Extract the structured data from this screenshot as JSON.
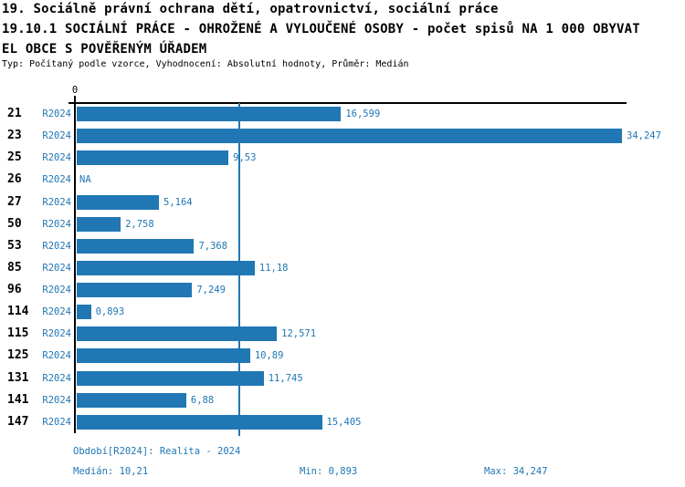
{
  "header": {
    "line1": "19. Sociálně právní ochrana dětí, opatrovnictví, sociální práce",
    "line2": "19.10.1 SOCIÁLNÍ PRÁCE - OHROŽENÉ A VYLOUČENÉ OSOBY - počet spisů NA 1 000 OBYVAT",
    "line3": "EL OBCE S POVĚŘENÝM ÚŘADEM",
    "subtitle": "Typ: Počítaný podle vzorce, Vyhodnocení: Absolutní hodnoty, Průměr: Medián"
  },
  "chart_data": {
    "type": "bar",
    "orientation": "horizontal",
    "title": "19.10.1 SOCIÁLNÍ PRÁCE - OHROŽENÉ A VYLOUČENÉ OSOBY - počet spisů NA 1 000 OBYVATEL OBCE S POVĚŘENÝM ÚŘADEM",
    "series_label": "R2024",
    "categories": [
      "21",
      "23",
      "25",
      "26",
      "27",
      "50",
      "53",
      "85",
      "96",
      "114",
      "115",
      "125",
      "131",
      "141",
      "147"
    ],
    "values": [
      16.599,
      34.247,
      9.53,
      null,
      5.164,
      2.758,
      7.368,
      11.18,
      7.249,
      0.893,
      12.571,
      10.89,
      11.745,
      6.88,
      15.405
    ],
    "value_labels": [
      "16,599",
      "34,247",
      "9,53",
      "NA",
      "5,164",
      "2,758",
      "7,368",
      "11,18",
      "7,249",
      "0,893",
      "12,571",
      "10,89",
      "11,745",
      "6,88",
      "15,405"
    ],
    "axis": {
      "zero_label": "0",
      "xlim": [
        0,
        34.247
      ],
      "median_line_value": 10.21,
      "grid": false
    },
    "legend_position": "none",
    "colors": {
      "bar": "#2077b4",
      "median_line": "#2077b4",
      "value_text": "#1f77b4",
      "series_text": "#1f77b4",
      "category_text": "#000000",
      "axis": "#000000"
    }
  },
  "footer": {
    "period": "Období[R2024]: Realita - 2024",
    "median": "Medián: 10,21",
    "min": "Min: 0,893",
    "max": "Max: 34,247"
  }
}
